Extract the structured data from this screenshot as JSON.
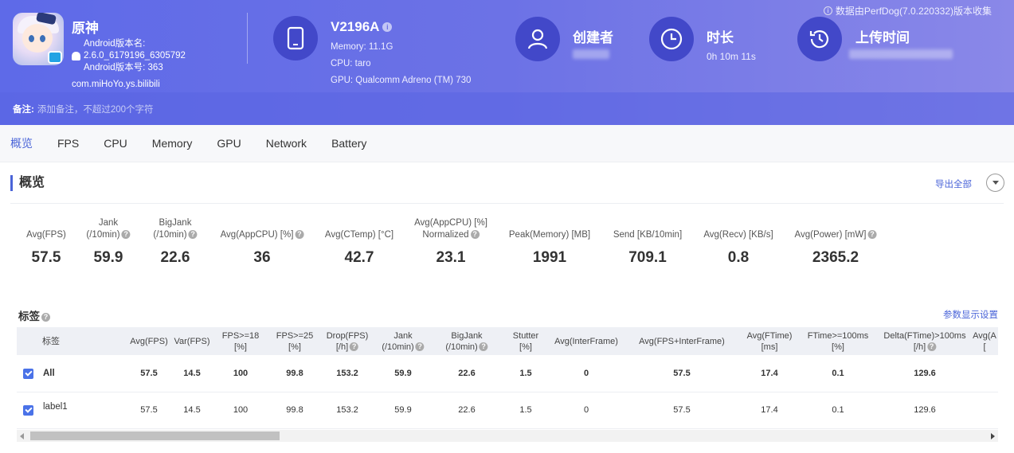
{
  "header": {
    "notice": "数据由PerfDog(7.0.220332)版本收集",
    "app": {
      "name": "原神",
      "version_label": "Android版本名:",
      "version_name": "2.6.0_6179196_6305792",
      "version_code_label": "Android版本号: 363",
      "package": "com.miHoYo.ys.bilibili"
    },
    "device": {
      "model": "V2196A",
      "memory": "Memory: 11.1G",
      "cpu": "CPU: taro",
      "gpu": "GPU: Qualcomm Adreno (TM) 730"
    },
    "creator": {
      "title": "创建者"
    },
    "duration": {
      "title": "时长",
      "value": "0h 10m 11s"
    },
    "upload": {
      "title": "上传时间"
    },
    "remark": {
      "label": "备注:",
      "placeholder": "添加备注，不超过200个字符"
    }
  },
  "tabs": [
    "概览",
    "FPS",
    "CPU",
    "Memory",
    "GPU",
    "Network",
    "Battery"
  ],
  "overview": {
    "title": "概览",
    "export_label": "导出全部",
    "metrics": [
      {
        "l1": "",
        "l2": "Avg(FPS)",
        "help": false,
        "value": "57.5"
      },
      {
        "l1": "Jank",
        "l2": "(/10min)",
        "help": true,
        "value": "59.9"
      },
      {
        "l1": "BigJank",
        "l2": "(/10min)",
        "help": true,
        "value": "22.6"
      },
      {
        "l1": "",
        "l2": "Avg(AppCPU) [%]",
        "help": true,
        "value": "36"
      },
      {
        "l1": "",
        "l2": "Avg(CTemp) [°C]",
        "help": false,
        "value": "42.7"
      },
      {
        "l1": "Avg(AppCPU) [%]",
        "l2": "Normalized",
        "help": true,
        "value": "23.1"
      },
      {
        "l1": "",
        "l2": "Peak(Memory) [MB]",
        "help": false,
        "value": "1991"
      },
      {
        "l1": "",
        "l2": "Send [KB/10min]",
        "help": false,
        "value": "709.1"
      },
      {
        "l1": "",
        "l2": "Avg(Recv) [KB/s]",
        "help": false,
        "value": "0.8"
      },
      {
        "l1": "",
        "l2": "Avg(Power) [mW]",
        "help": true,
        "value": "2365.2"
      }
    ]
  },
  "tags": {
    "title": "标签",
    "param_link": "参数显示设置",
    "columns": [
      {
        "l1": "标签",
        "l2": "",
        "help": false
      },
      {
        "l1": "Avg(FPS)",
        "l2": "",
        "help": false
      },
      {
        "l1": "Var(FPS)",
        "l2": "",
        "help": false
      },
      {
        "l1": "FPS>=18",
        "l2": "[%]",
        "help": false
      },
      {
        "l1": "FPS>=25",
        "l2": "[%]",
        "help": false
      },
      {
        "l1": "Drop(FPS)",
        "l2": "[/h]",
        "help": true
      },
      {
        "l1": "Jank",
        "l2": "(/10min)",
        "help": true
      },
      {
        "l1": "BigJank",
        "l2": "(/10min)",
        "help": true
      },
      {
        "l1": "Stutter",
        "l2": "[%]",
        "help": false
      },
      {
        "l1": "Avg(InterFrame)",
        "l2": "",
        "help": false
      },
      {
        "l1": "Avg(FPS+InterFrame)",
        "l2": "",
        "help": false
      },
      {
        "l1": "Avg(FTime)",
        "l2": "[ms]",
        "help": false
      },
      {
        "l1": "FTime>=100ms",
        "l2": "[%]",
        "help": false
      },
      {
        "l1": "Delta(FTime)>100ms",
        "l2": "[/h]",
        "help": true
      },
      {
        "l1": "Avg(A",
        "l2": "[",
        "help": false
      }
    ],
    "rows": [
      {
        "label": "All",
        "bold": true,
        "cells": [
          "57.5",
          "14.5",
          "100",
          "99.8",
          "153.2",
          "59.9",
          "22.6",
          "1.5",
          "0",
          "57.5",
          "17.4",
          "0.1",
          "129.6"
        ]
      },
      {
        "label": "label1",
        "bold": false,
        "cells": [
          "57.5",
          "14.5",
          "100",
          "99.8",
          "153.2",
          "59.9",
          "22.6",
          "1.5",
          "0",
          "57.5",
          "17.4",
          "0.1",
          "129.6"
        ]
      }
    ]
  }
}
